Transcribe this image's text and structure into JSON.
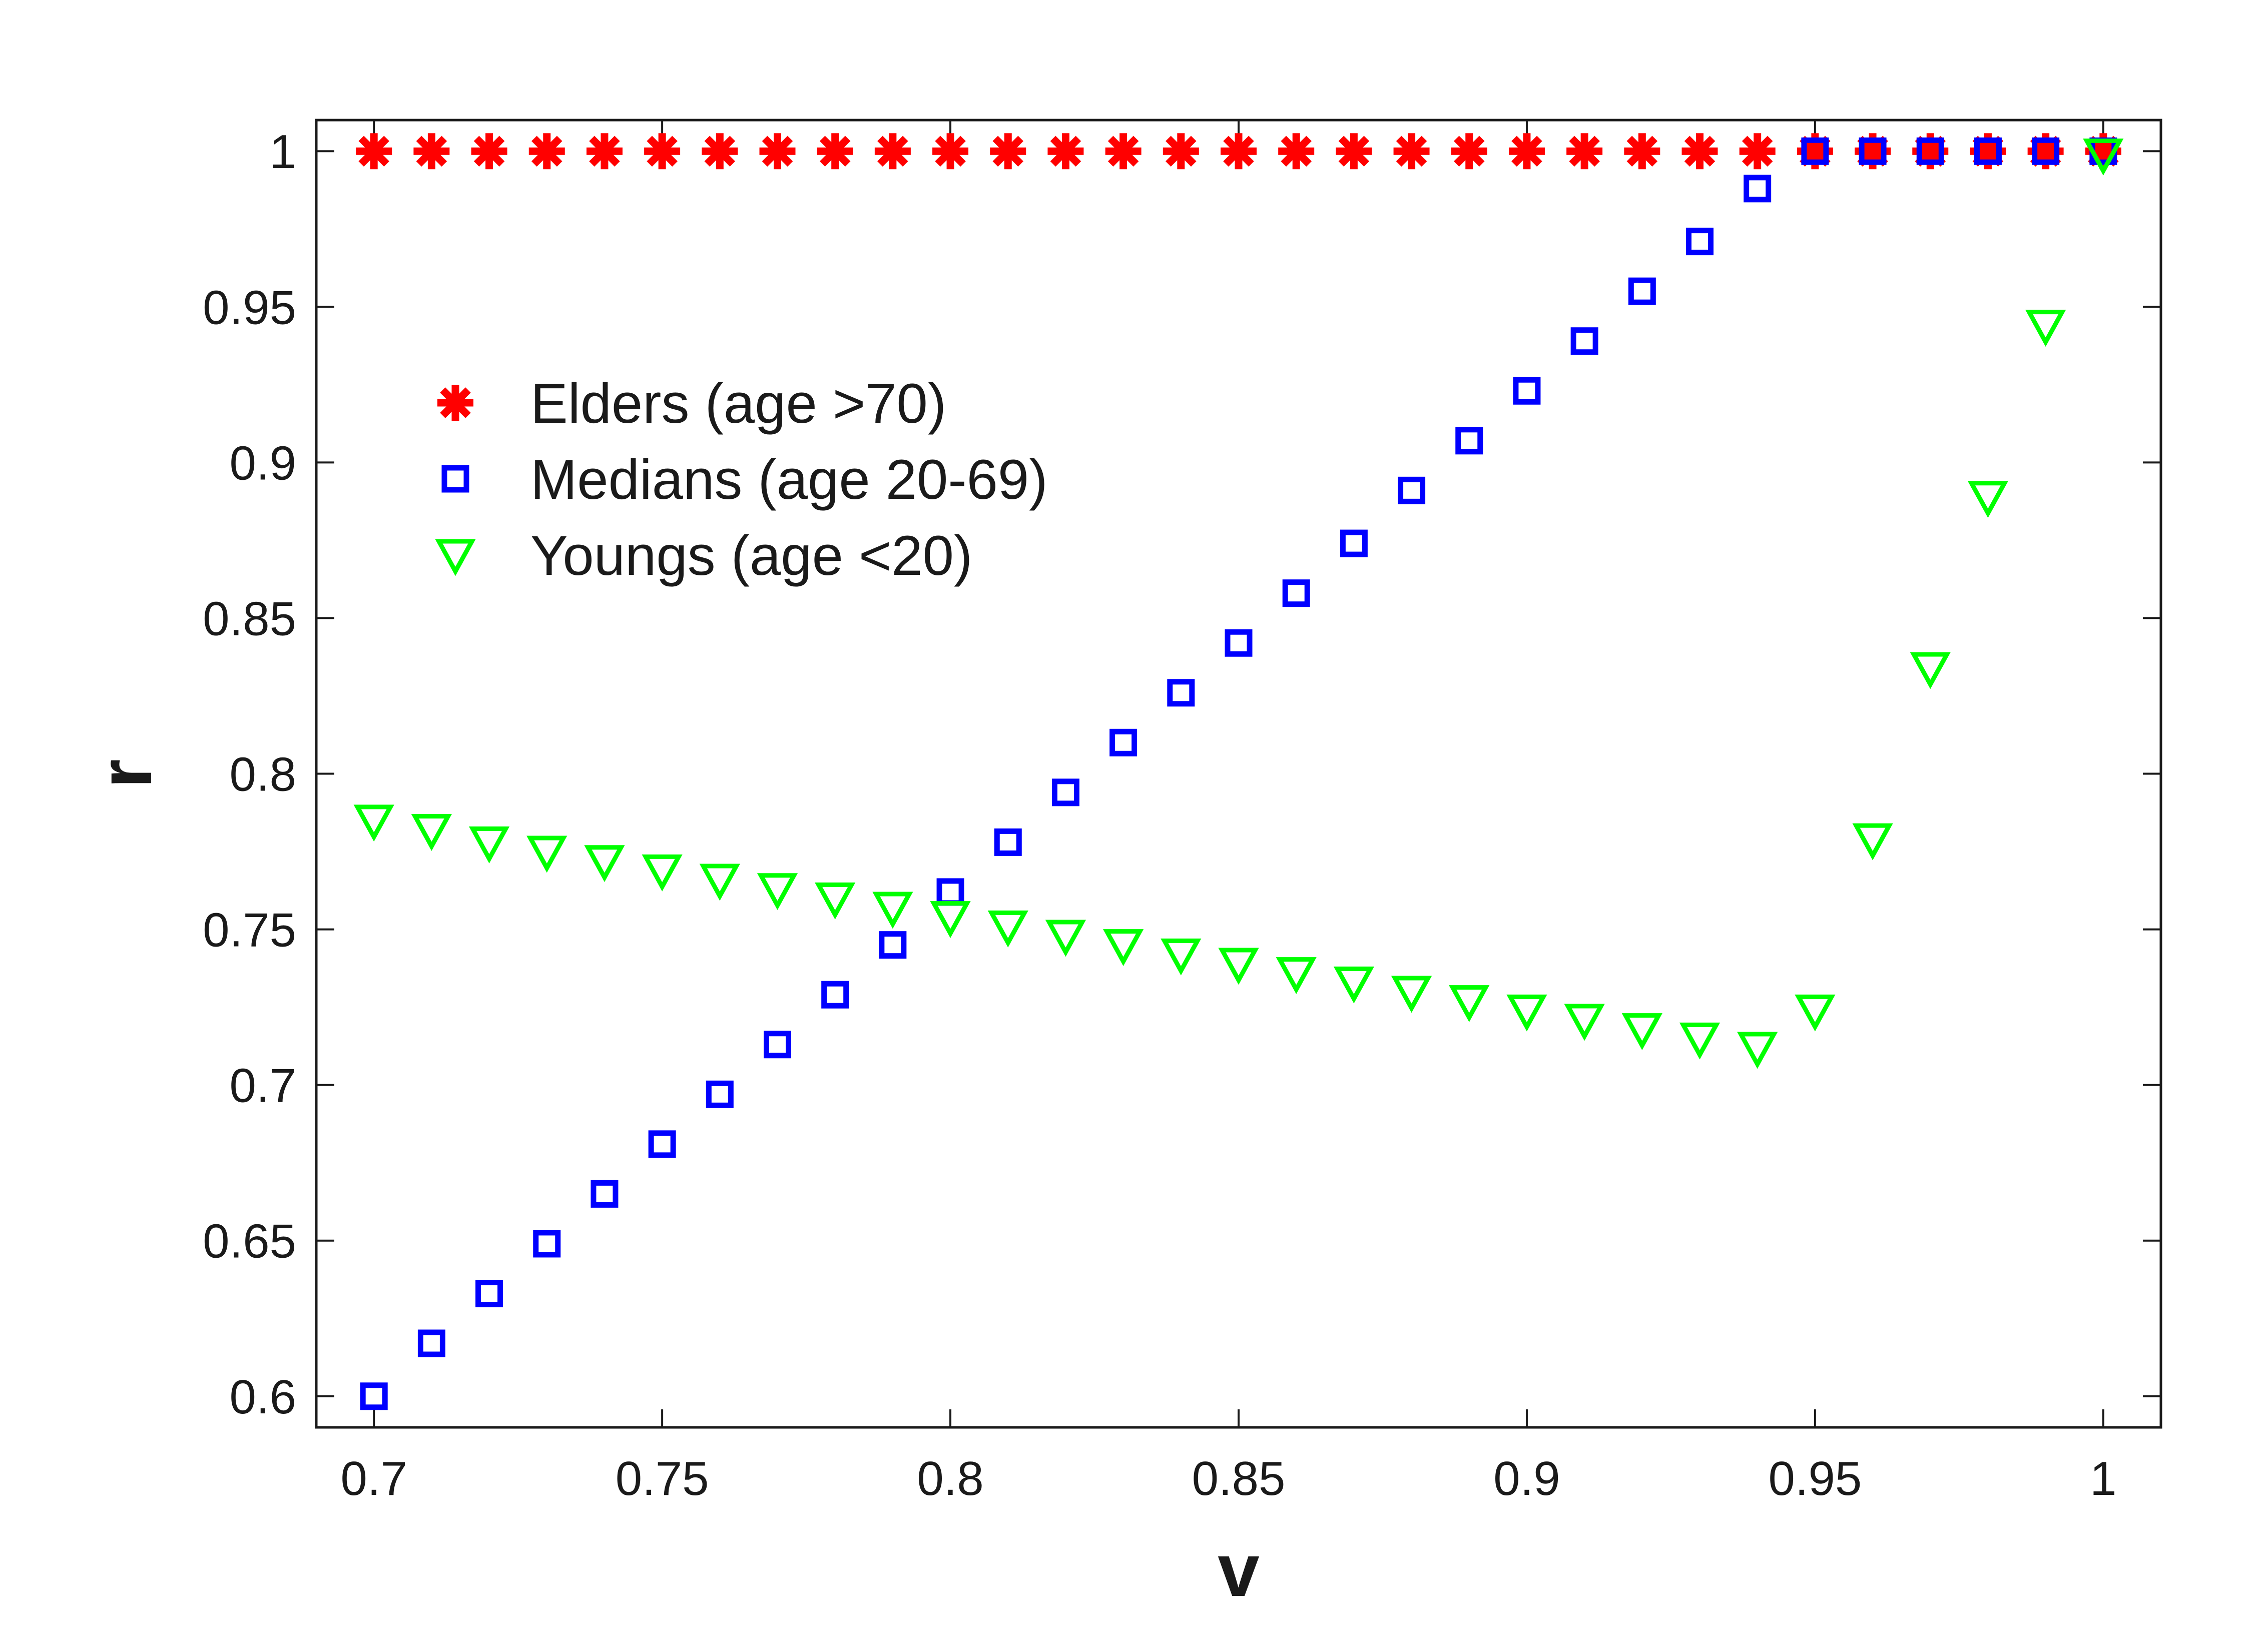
{
  "chart_data": {
    "type": "scatter",
    "title": "",
    "xlabel": "v",
    "ylabel": "r",
    "xlim": [
      0.69,
      1.01
    ],
    "ylim": [
      0.59,
      1.01
    ],
    "xticks": [
      "0.7",
      "0.75",
      "0.8",
      "0.85",
      "0.9",
      "0.95",
      "1"
    ],
    "yticks": [
      "0.6",
      "0.65",
      "0.7",
      "0.75",
      "0.8",
      "0.85",
      "0.9",
      "0.95",
      "1"
    ],
    "grid": false,
    "legend_position": "upper-left",
    "series": [
      {
        "name": "Elders (age >70)",
        "marker": "asterisk",
        "color": "#ff0000",
        "x": [
          0.7,
          0.71,
          0.72,
          0.73,
          0.74,
          0.75,
          0.76,
          0.77,
          0.78,
          0.79,
          0.8,
          0.81,
          0.82,
          0.83,
          0.84,
          0.85,
          0.86,
          0.87,
          0.88,
          0.89,
          0.9,
          0.91,
          0.92,
          0.93,
          0.94,
          0.95,
          0.96,
          0.97,
          0.98,
          0.99,
          1.0
        ],
        "y": [
          1,
          1,
          1,
          1,
          1,
          1,
          1,
          1,
          1,
          1,
          1,
          1,
          1,
          1,
          1,
          1,
          1,
          1,
          1,
          1,
          1,
          1,
          1,
          1,
          1,
          1,
          1,
          1,
          1,
          1,
          1
        ]
      },
      {
        "name": "Medians (age 20-69)",
        "marker": "square",
        "color": "#0000ff",
        "x": [
          0.7,
          0.71,
          0.72,
          0.73,
          0.74,
          0.75,
          0.76,
          0.77,
          0.78,
          0.79,
          0.8,
          0.81,
          0.82,
          0.83,
          0.84,
          0.85,
          0.86,
          0.87,
          0.88,
          0.89,
          0.9,
          0.91,
          0.92,
          0.93,
          0.94,
          0.95,
          0.96,
          0.97,
          0.98,
          0.99,
          1.0
        ],
        "y": [
          0.6,
          0.617,
          0.633,
          0.649,
          0.665,
          0.681,
          0.697,
          0.713,
          0.729,
          0.745,
          0.762,
          0.778,
          0.794,
          0.81,
          0.826,
          0.842,
          0.858,
          0.874,
          0.891,
          0.907,
          0.923,
          0.939,
          0.955,
          0.971,
          0.988,
          1.0,
          1.0,
          1.0,
          1.0,
          1.0,
          1.0
        ]
      },
      {
        "name": "Youngs (age <20)",
        "marker": "triangle-down",
        "color": "#00ff00",
        "x": [
          0.7,
          0.71,
          0.72,
          0.73,
          0.74,
          0.75,
          0.76,
          0.77,
          0.78,
          0.79,
          0.8,
          0.81,
          0.82,
          0.83,
          0.84,
          0.85,
          0.86,
          0.87,
          0.88,
          0.89,
          0.9,
          0.91,
          0.92,
          0.93,
          0.94,
          0.95,
          0.96,
          0.97,
          0.98,
          0.99,
          1.0
        ],
        "y": [
          0.785,
          0.782,
          0.778,
          0.775,
          0.772,
          0.769,
          0.766,
          0.763,
          0.76,
          0.757,
          0.754,
          0.751,
          0.748,
          0.745,
          0.742,
          0.739,
          0.736,
          0.733,
          0.73,
          0.727,
          0.724,
          0.721,
          0.718,
          0.715,
          0.712,
          0.724,
          0.779,
          0.834,
          0.889,
          0.944,
          0.999
        ]
      }
    ]
  }
}
